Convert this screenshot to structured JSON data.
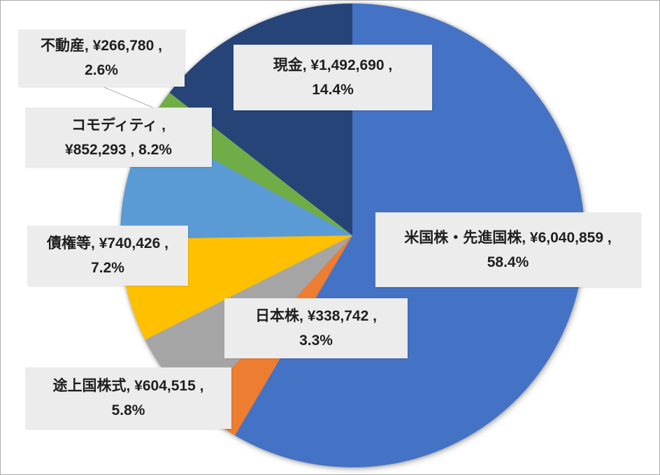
{
  "chart_data": {
    "type": "pie",
    "title": "",
    "legend": "none",
    "start_angle_deg": 0,
    "direction": "clockwise",
    "slices": [
      {
        "label": "米国株・先進国株",
        "value": 6040859,
        "value_str": "¥6,040,859",
        "pct": "58.4%",
        "color": "#4472C4"
      },
      {
        "label": "日本株",
        "value": 338742,
        "value_str": "¥338,742",
        "pct": "3.3%",
        "color": "#ED7D31"
      },
      {
        "label": "途上国株式",
        "value": 604515,
        "value_str": "¥604,515",
        "pct": "5.8%",
        "color": "#A5A5A5"
      },
      {
        "label": "債権等",
        "value": 740426,
        "value_str": "¥740,426",
        "pct": "7.2%",
        "color": "#FFC000"
      },
      {
        "label": "コモディティ",
        "value": 852293,
        "value_str": "¥852,293",
        "pct": "8.2%",
        "color": "#5B9BD5"
      },
      {
        "label": "不動産",
        "value": 266780,
        "value_str": "¥266,780",
        "pct": "2.6%",
        "color": "#70AD47"
      },
      {
        "label": "現金",
        "value": 1492690,
        "value_str": "¥1,492,690",
        "pct": "14.4%",
        "color": "#264478"
      }
    ],
    "data_labels": [
      {
        "line1": "米国株・先進国株, ¥6,040,859 ,",
        "line2": "58.4%"
      },
      {
        "line1": "日本株, ¥338,742 ,",
        "line2": "3.3%"
      },
      {
        "line1": "途上国株式, ¥604,515 ,",
        "line2": "5.8%"
      },
      {
        "line1": "債権等, ¥740,426 ,",
        "line2": "7.2%"
      },
      {
        "line1": "コモディティ ,",
        "line2": "¥852,293 , 8.2%"
      },
      {
        "line1": "不動産, ¥266,780 ,",
        "line2": "2.6%"
      },
      {
        "line1": "現金, ¥1,492,690 ,",
        "line2": "14.4%"
      }
    ],
    "colors": {
      "label_bg": "#ECECEC",
      "label_text": "#1F1F1F",
      "leader_line": "#AFAFAF"
    }
  }
}
